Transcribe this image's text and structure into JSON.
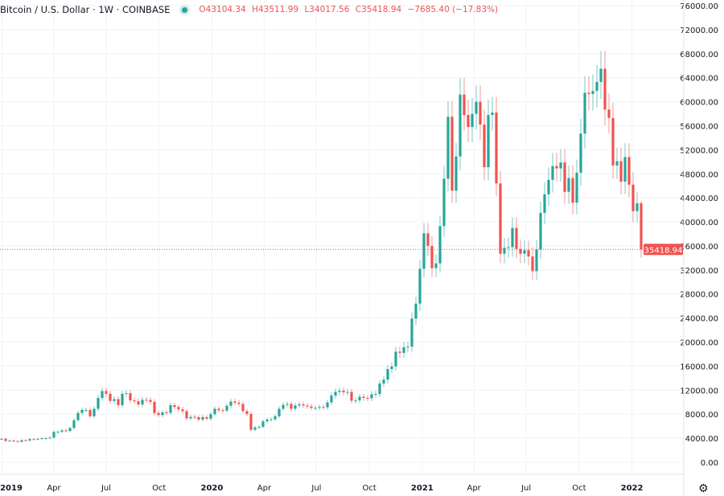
{
  "legend": {
    "symbol": "Bitcoin / U.S. Dollar · 1W · COINBASE",
    "open": "O43104.34",
    "high": "H43511.99",
    "low": "L34017.56",
    "close": "C35418.94",
    "change": "−7685.40 (−17.83%)"
  },
  "colors": {
    "up": "#26a69a",
    "down": "#ef5350",
    "grid": "#f0f3fa",
    "text": "#131722"
  },
  "settings_icon": "gear-icon",
  "chart_data": {
    "type": "candlestick",
    "title": "Bitcoin / U.S. Dollar · 1W · COINBASE",
    "interval": "1W",
    "ylim": [
      0,
      76000
    ],
    "y_ticks": [
      "0.00",
      "4000.00",
      "8000.00",
      "12000.00",
      "16000.00",
      "20000.00",
      "24000.00",
      "28000.00",
      "32000.00",
      "36000.00",
      "40000.00",
      "44000.00",
      "48000.00",
      "52000.00",
      "56000.00",
      "60000.00",
      "64000.00",
      "68000.00",
      "72000.00",
      "76000.00"
    ],
    "x_ticks": [
      {
        "date": "2019-01-01",
        "label": "2019",
        "bold": true
      },
      {
        "date": "2019-04-01",
        "label": "Apr"
      },
      {
        "date": "2019-07-01",
        "label": "Jul"
      },
      {
        "date": "2019-10-01",
        "label": "Oct"
      },
      {
        "date": "2020-01-01",
        "label": "2020",
        "bold": true
      },
      {
        "date": "2020-04-01",
        "label": "Apr"
      },
      {
        "date": "2020-07-01",
        "label": "Jul"
      },
      {
        "date": "2020-10-01",
        "label": "Oct"
      },
      {
        "date": "2021-01-01",
        "label": "2021",
        "bold": true
      },
      {
        "date": "2021-04-01",
        "label": "Apr"
      },
      {
        "date": "2021-07-01",
        "label": "Jul"
      },
      {
        "date": "2021-10-01",
        "label": "Oct"
      },
      {
        "date": "2022-01-01",
        "label": "2022",
        "bold": true
      }
    ],
    "grid": true,
    "last_price": 35418.94,
    "last_price_label": "35418.94",
    "last_candle": {
      "date": "2022-01-17",
      "open": 43104.34,
      "high": 43511.99,
      "low": 34017.56,
      "close": 35418.94
    },
    "weekly_closes": [
      [
        "2018-12-31",
        3900
      ],
      [
        "2019-01-07",
        3550
      ],
      [
        "2019-01-14",
        3600
      ],
      [
        "2019-01-21",
        3530
      ],
      [
        "2019-01-28",
        3410
      ],
      [
        "2019-02-04",
        3660
      ],
      [
        "2019-02-11",
        3620
      ],
      [
        "2019-02-18",
        3850
      ],
      [
        "2019-02-25",
        3820
      ],
      [
        "2019-03-04",
        3900
      ],
      [
        "2019-03-11",
        3990
      ],
      [
        "2019-03-18",
        4000
      ],
      [
        "2019-03-25",
        4110
      ],
      [
        "2019-04-01",
        5040
      ],
      [
        "2019-04-08",
        5070
      ],
      [
        "2019-04-15",
        5300
      ],
      [
        "2019-04-22",
        5200
      ],
      [
        "2019-04-29",
        5700
      ],
      [
        "2019-05-06",
        7000
      ],
      [
        "2019-05-13",
        8200
      ],
      [
        "2019-05-20",
        8700
      ],
      [
        "2019-05-27",
        8700
      ],
      [
        "2019-06-03",
        7650
      ],
      [
        "2019-06-10",
        8900
      ],
      [
        "2019-06-17",
        10700
      ],
      [
        "2019-06-24",
        11850
      ],
      [
        "2019-07-01",
        11400
      ],
      [
        "2019-07-08",
        10200
      ],
      [
        "2019-07-15",
        10500
      ],
      [
        "2019-07-22",
        9500
      ],
      [
        "2019-07-29",
        11400
      ],
      [
        "2019-08-05",
        11500
      ],
      [
        "2019-08-12",
        10300
      ],
      [
        "2019-08-19",
        10150
      ],
      [
        "2019-08-26",
        9600
      ],
      [
        "2019-09-02",
        10400
      ],
      [
        "2019-09-09",
        10350
      ],
      [
        "2019-09-16",
        10050
      ],
      [
        "2019-09-23",
        8200
      ],
      [
        "2019-09-30",
        7850
      ],
      [
        "2019-10-07",
        8300
      ],
      [
        "2019-10-14",
        8220
      ],
      [
        "2019-10-21",
        9500
      ],
      [
        "2019-10-28",
        9200
      ],
      [
        "2019-11-04",
        8800
      ],
      [
        "2019-11-11",
        8500
      ],
      [
        "2019-11-18",
        7300
      ],
      [
        "2019-11-25",
        7550
      ],
      [
        "2019-12-02",
        7500
      ],
      [
        "2019-12-09",
        7100
      ],
      [
        "2019-12-16",
        7500
      ],
      [
        "2019-12-23",
        7250
      ],
      [
        "2019-12-30",
        8000
      ],
      [
        "2020-01-06",
        8900
      ],
      [
        "2020-01-13",
        8650
      ],
      [
        "2020-01-20",
        8600
      ],
      [
        "2020-01-27",
        9400
      ],
      [
        "2020-02-03",
        10100
      ],
      [
        "2020-02-10",
        9900
      ],
      [
        "2020-02-17",
        9700
      ],
      [
        "2020-02-24",
        8500
      ],
      [
        "2020-03-02",
        8050
      ],
      [
        "2020-03-09",
        5400
      ],
      [
        "2020-03-16",
        5800
      ],
      [
        "2020-03-23",
        5900
      ],
      [
        "2020-03-30",
        6800
      ],
      [
        "2020-04-06",
        7100
      ],
      [
        "2020-04-13",
        7150
      ],
      [
        "2020-04-20",
        7650
      ],
      [
        "2020-04-27",
        8900
      ],
      [
        "2020-05-04",
        9550
      ],
      [
        "2020-05-11",
        9700
      ],
      [
        "2020-05-18",
        8900
      ],
      [
        "2020-05-25",
        9450
      ],
      [
        "2020-06-01",
        9650
      ],
      [
        "2020-06-08",
        9450
      ],
      [
        "2020-06-15",
        9300
      ],
      [
        "2020-06-22",
        9050
      ],
      [
        "2020-06-29",
        9050
      ],
      [
        "2020-07-06",
        9200
      ],
      [
        "2020-07-13",
        9150
      ],
      [
        "2020-07-20",
        9950
      ],
      [
        "2020-07-27",
        11100
      ],
      [
        "2020-08-03",
        11700
      ],
      [
        "2020-08-10",
        11900
      ],
      [
        "2020-08-17",
        11650
      ],
      [
        "2020-08-24",
        11700
      ],
      [
        "2020-08-31",
        10250
      ],
      [
        "2020-09-07",
        10300
      ],
      [
        "2020-09-14",
        10900
      ],
      [
        "2020-09-21",
        10700
      ],
      [
        "2020-09-28",
        10650
      ],
      [
        "2020-10-05",
        11300
      ],
      [
        "2020-10-12",
        11350
      ],
      [
        "2020-10-19",
        13100
      ],
      [
        "2020-10-26",
        13750
      ],
      [
        "2020-11-02",
        15500
      ],
      [
        "2020-11-09",
        15950
      ],
      [
        "2020-11-16",
        18400
      ],
      [
        "2020-11-23",
        18200
      ],
      [
        "2020-11-30",
        19150
      ],
      [
        "2020-12-07",
        19250
      ],
      [
        "2020-12-14",
        23900
      ],
      [
        "2020-12-21",
        26400
      ],
      [
        "2020-12-28",
        32200
      ],
      [
        "2021-01-04",
        38100
      ],
      [
        "2021-01-11",
        36000
      ],
      [
        "2021-01-18",
        32300
      ],
      [
        "2021-01-25",
        33100
      ],
      [
        "2021-02-01",
        39300
      ],
      [
        "2021-02-08",
        47200
      ],
      [
        "2021-02-15",
        57500
      ],
      [
        "2021-02-22",
        45200
      ],
      [
        "2021-03-01",
        50900
      ],
      [
        "2021-03-08",
        61200
      ],
      [
        "2021-03-15",
        57800
      ],
      [
        "2021-03-22",
        55800
      ],
      [
        "2021-03-29",
        58000
      ],
      [
        "2021-04-05",
        60000
      ],
      [
        "2021-04-12",
        56200
      ],
      [
        "2021-04-19",
        49100
      ],
      [
        "2021-04-26",
        57800
      ],
      [
        "2021-05-03",
        58200
      ],
      [
        "2021-05-10",
        46400
      ],
      [
        "2021-05-17",
        34700
      ],
      [
        "2021-05-24",
        35700
      ],
      [
        "2021-05-31",
        35800
      ],
      [
        "2021-06-07",
        39000
      ],
      [
        "2021-06-14",
        35500
      ],
      [
        "2021-06-21",
        34700
      ],
      [
        "2021-06-28",
        35300
      ],
      [
        "2021-07-05",
        34250
      ],
      [
        "2021-07-12",
        31800
      ],
      [
        "2021-07-19",
        35400
      ],
      [
        "2021-07-26",
        41500
      ],
      [
        "2021-08-02",
        44600
      ],
      [
        "2021-08-09",
        47000
      ],
      [
        "2021-08-16",
        49300
      ],
      [
        "2021-08-23",
        48900
      ],
      [
        "2021-08-30",
        49900
      ],
      [
        "2021-09-06",
        45000
      ],
      [
        "2021-09-13",
        47300
      ],
      [
        "2021-09-20",
        43200
      ],
      [
        "2021-09-27",
        48200
      ],
      [
        "2021-10-04",
        54700
      ],
      [
        "2021-10-11",
        61500
      ],
      [
        "2021-10-18",
        61300
      ],
      [
        "2021-10-25",
        61800
      ],
      [
        "2021-11-01",
        63300
      ],
      [
        "2021-11-08",
        65500
      ],
      [
        "2021-11-15",
        58700
      ],
      [
        "2021-11-22",
        57300
      ],
      [
        "2021-11-29",
        49400
      ],
      [
        "2021-12-06",
        50100
      ],
      [
        "2021-12-13",
        46700
      ],
      [
        "2021-12-20",
        50800
      ],
      [
        "2021-12-27",
        46200
      ],
      [
        "2022-01-03",
        41800
      ],
      [
        "2022-01-10",
        43100
      ]
    ]
  }
}
